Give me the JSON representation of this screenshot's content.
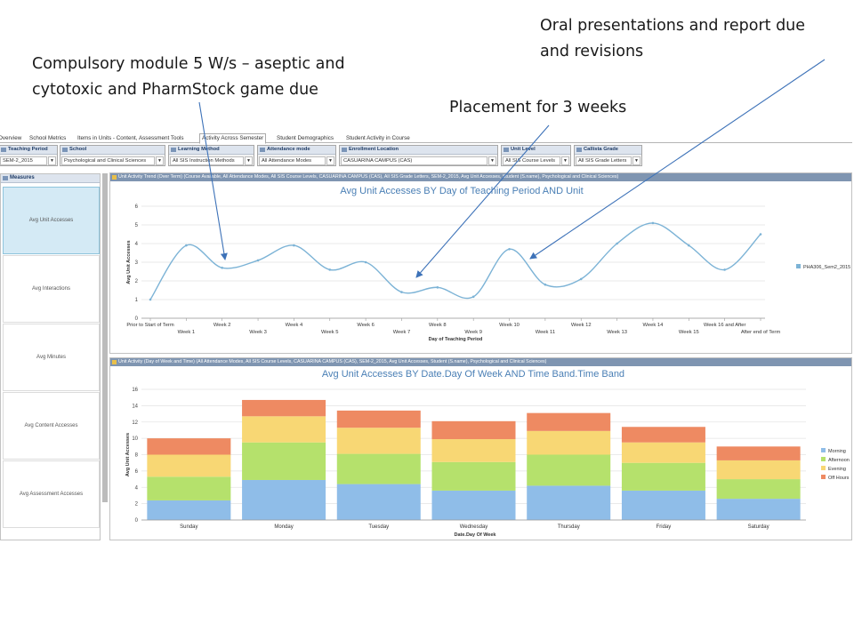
{
  "annotations": {
    "compulsory": [
      "Compulsory module 5 W/s – aseptic and",
      "cytotoxic and PharmStock game due"
    ],
    "oral": [
      "Oral presentations  and report due",
      "and revisions"
    ],
    "placement": "Placement for 3 weeks"
  },
  "tabs": [
    "Overview",
    "School Metrics",
    "Items in Units - Content, Assessment Tools",
    "Activity Across Semester",
    "Student Demographics",
    "Student Activity in Course"
  ],
  "active_tab": "Activity Across Semester",
  "filters": [
    {
      "label": "Teaching Period",
      "value": "SEM-2_2015"
    },
    {
      "label": "School",
      "value": "Psychological and Clinical Sciences"
    },
    {
      "label": "Learning Method",
      "value": "All SIS Instruction Methods"
    },
    {
      "label": "Attendance mode",
      "value": "All Attendance Modes"
    },
    {
      "label": "Enrollment Location",
      "value": "CASUARINA CAMPUS (CAS)"
    },
    {
      "label": "Unit Level",
      "value": "All SIS Course Levels"
    },
    {
      "label": "Callista Grade",
      "value": "All SIS Grade Letters"
    }
  ],
  "measures": {
    "title": "Measures",
    "items": [
      "Avg Unit Accesses",
      "Avg Interactions",
      "Avg Minutes",
      "Avg Content Accesses",
      "Avg Assessment Accesses"
    ],
    "active": "Avg Unit Accesses"
  },
  "panels": {
    "trend_header": "Unit Activity Trend (Over Term)  (Course Available, All Attendance Modes, All SIS Course Levels, CASUARINA CAMPUS (CAS), All SIS Grade Letters, SEM-2_2015, Avg Unit Accesses, Student (S.name), Psychological and Clinical Sciences)",
    "activity_header": "Unit Activity (Day of Week and Time)  (All Attendance Modes, All SIS Course Levels, CASUARINA CAMPUS (CAS), SEM-2_2015, Avg Unit Accesses, Student (S.name), Psychological and Clinical Sciences)"
  },
  "chart_data": [
    {
      "type": "line",
      "title": "Avg Unit Accesses BY Day of Teaching Period AND Unit",
      "xlabel": "Day of Teaching Period",
      "ylabel": "Avg Unit Accesses",
      "ylim": [
        0,
        6
      ],
      "yticks": [
        0,
        1,
        2,
        3,
        4,
        5,
        6
      ],
      "categories": [
        "Prior to Start of Term",
        "Week 1",
        "Week 2",
        "Week 3",
        "Week 4",
        "Week 5",
        "Week 6",
        "Week 7",
        "Week 8",
        "Week 9",
        "Week 10",
        "Week 11",
        "Week 12",
        "Week 13",
        "Week 14",
        "Week 15",
        "Week 16 and After",
        "After end of Term"
      ],
      "series": [
        {
          "name": "PHA306_Sem2_2015",
          "color": "#7cb3d6",
          "values": [
            1.0,
            3.9,
            2.7,
            3.1,
            3.9,
            2.6,
            3.0,
            1.4,
            1.65,
            1.15,
            3.7,
            1.8,
            2.1,
            4.0,
            5.1,
            3.9,
            2.6,
            4.5
          ]
        }
      ],
      "grid": true,
      "legend": "right"
    },
    {
      "type": "bar",
      "stacked": true,
      "title": "Avg Unit Accesses BY Date.Day Of Week AND Time Band.Time Band",
      "xlabel": "Date.Day Of Week",
      "ylabel": "Avg Unit Accesses",
      "ylim": [
        0,
        16
      ],
      "yticks": [
        0,
        2,
        4,
        6,
        8,
        10,
        12,
        14,
        16
      ],
      "categories": [
        "Sunday",
        "Monday",
        "Tuesday",
        "Wednesday",
        "Thursday",
        "Friday",
        "Saturday"
      ],
      "series": [
        {
          "name": "Morning",
          "color": "#8fbde8",
          "values": [
            2.4,
            4.9,
            4.4,
            3.6,
            4.2,
            3.6,
            2.6
          ]
        },
        {
          "name": "Afternoon",
          "color": "#b5e16c",
          "values": [
            2.9,
            4.6,
            3.7,
            3.5,
            3.8,
            3.4,
            2.4
          ]
        },
        {
          "name": "Evening",
          "color": "#f8d774",
          "values": [
            2.7,
            3.2,
            3.2,
            2.8,
            2.9,
            2.5,
            2.3
          ]
        },
        {
          "name": "Off Hours",
          "color": "#ee8a62",
          "values": [
            2.0,
            2.0,
            2.1,
            2.2,
            2.2,
            1.9,
            1.7
          ]
        }
      ],
      "grid": true,
      "legend": "right"
    }
  ]
}
